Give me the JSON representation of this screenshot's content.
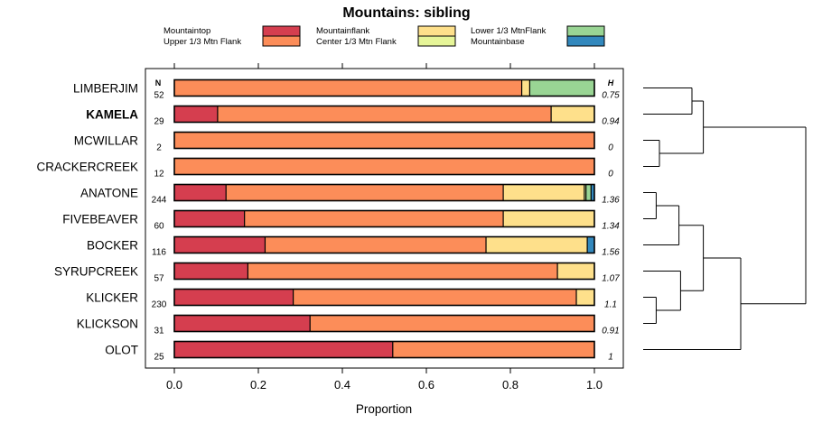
{
  "chart_data": {
    "type": "bar",
    "orientation": "horizontal",
    "stacked": true,
    "title": "Mountains: sibling",
    "xlabel": "Proportion",
    "ylabel": "",
    "xlim": [
      0,
      1
    ],
    "x_ticks": [
      "0.0",
      "0.2",
      "0.4",
      "0.6",
      "0.8",
      "1.0"
    ],
    "x_tick_values": [
      0,
      0.2,
      0.4,
      0.6,
      0.8,
      1.0
    ],
    "n_header": "N",
    "h_header": "H",
    "categories": [
      "LIMBERJIM",
      "KAMELA",
      "MCWILLAR",
      "CRACKERCREEK",
      "ANATONE",
      "FIVEBEAVER",
      "BOCKER",
      "SYRUPCREEK",
      "KLICKER",
      "KLICKSON",
      "OLOT"
    ],
    "bold_categories": [
      "KAMELA"
    ],
    "n_values": [
      "52",
      "29",
      "2",
      "12",
      "244",
      "60",
      "116",
      "57",
      "230",
      "31",
      "25"
    ],
    "h_values": [
      "0.75",
      "0.94",
      "0",
      "0",
      "1.36",
      "1.34",
      "1.56",
      "1.07",
      "1.1",
      "0.91",
      "1"
    ],
    "legend": [
      {
        "name": "Mountaintop",
        "color": "#d53e4f"
      },
      {
        "name": "Upper 1/3 Mtn Flank",
        "color": "#fc8d59"
      },
      {
        "name": "Mountainflank",
        "color": "#fee08b"
      },
      {
        "name": "Center 1/3 Mtn Flank",
        "color": "#e6f598"
      },
      {
        "name": "Lower 1/3 MtnFlank",
        "color": "#99d594"
      },
      {
        "name": "Mountainbase",
        "color": "#3288bd"
      }
    ],
    "series": [
      {
        "name": "Mountaintop",
        "color": "#d53e4f",
        "values": [
          0,
          0.103,
          0,
          0,
          0.123,
          0.167,
          0.216,
          0.175,
          0.283,
          0.323,
          0.52
        ]
      },
      {
        "name": "Upper 1/3 Mtn Flank",
        "color": "#fc8d59",
        "values": [
          0.827,
          0.794,
          1.0,
          1.0,
          0.66,
          0.616,
          0.526,
          0.737,
          0.674,
          0.677,
          0.48
        ]
      },
      {
        "name": "Mountainflank",
        "color": "#fee08b",
        "values": [
          0.019,
          0.103,
          0,
          0,
          0.193,
          0.217,
          0.241,
          0.088,
          0.043,
          0,
          0
        ]
      },
      {
        "name": "Center 1/3 Mtn Flank",
        "color": "#e6f598",
        "values": [
          0,
          0,
          0,
          0,
          0.004,
          0,
          0,
          0,
          0,
          0,
          0
        ]
      },
      {
        "name": "Lower 1/3 MtnFlank",
        "color": "#99d594",
        "values": [
          0.154,
          0,
          0,
          0,
          0.012,
          0,
          0,
          0,
          0,
          0,
          0
        ]
      },
      {
        "name": "Mountainbase",
        "color": "#3288bd",
        "values": [
          0,
          0,
          0,
          0,
          0.008,
          0,
          0.017,
          0,
          0,
          0,
          0
        ]
      }
    ],
    "dendrogram": {
      "orientation": "right",
      "merges": [
        {
          "left": "LIMBERJIM",
          "right": "KAMELA",
          "height": 0.3
        },
        {
          "left": "MCWILLAR",
          "right": "CRACKERCREEK",
          "height": 0.1
        },
        {
          "left": "ANATONE",
          "right": "FIVEBEAVER",
          "height": 0.08
        },
        {
          "left": "KLICKER",
          "right": "KLICKSON",
          "height": 0.08
        },
        {
          "left": "ANATONE+FIVEBEAVER",
          "right": "BOCKER",
          "height": 0.22
        },
        {
          "left": "SYRUPCREEK",
          "right": "KLICKER+KLICKSON",
          "height": 0.23
        },
        {
          "left": "ANATONE+FIVEBEAVER+BOCKER",
          "right": "SYRUPCREEK+KLICKER+KLICKSON",
          "height": 0.37
        },
        {
          "left": "LIMBERJIM+KAMELA",
          "right": "MCWILLAR+CRACKERCREEK",
          "height": 0.37
        },
        {
          "left": "ANATONE..KLICKSON",
          "right": "OLOT",
          "height": 0.6
        },
        {
          "left": "LIMBERJIM..CRACKERCREEK",
          "right": "ANATONE..OLOT",
          "height": 1.0
        }
      ]
    }
  }
}
